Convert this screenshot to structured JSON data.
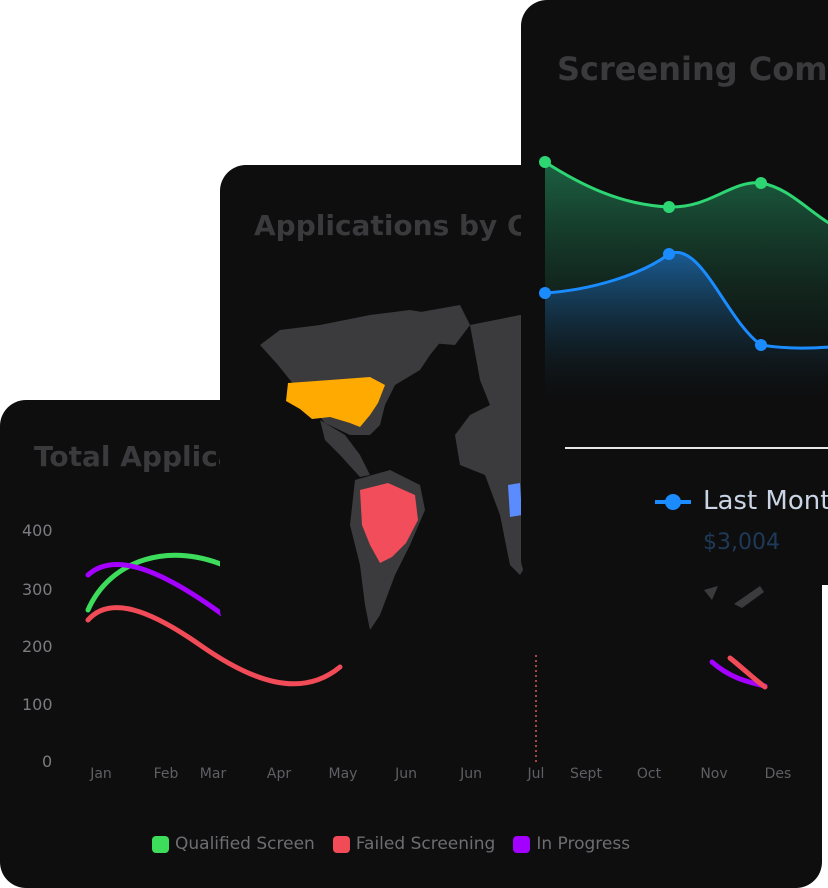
{
  "cards": {
    "total": {
      "title": "Total Applica",
      "y_ticks": [
        "400",
        "300",
        "200",
        "100",
        "0"
      ],
      "months": [
        "Jan",
        "Feb",
        "Mar",
        "Apr",
        "May",
        "Jun",
        "Jun",
        "Jul",
        "Sept",
        "Oct",
        "Nov",
        "Des"
      ],
      "legend": [
        {
          "label": "Qualified Screen",
          "color": "#3ddc5a"
        },
        {
          "label": "Failed Screening",
          "color": "#f04b57"
        },
        {
          "label": "In Progress",
          "color": "#a400ff"
        }
      ]
    },
    "map": {
      "title": "Applications by Co",
      "highlight_colors": {
        "usa": "#ffaa00",
        "brazil": "#f24d5b",
        "other": "#5b8cff",
        "land": "#3b3b3d"
      }
    },
    "screening": {
      "title": "Screening Comp",
      "series_colors": {
        "green": "#2ed573",
        "blue": "#1a8cff"
      },
      "last_month_label": "Last Mont",
      "last_month_value": "$3,004"
    }
  }
}
